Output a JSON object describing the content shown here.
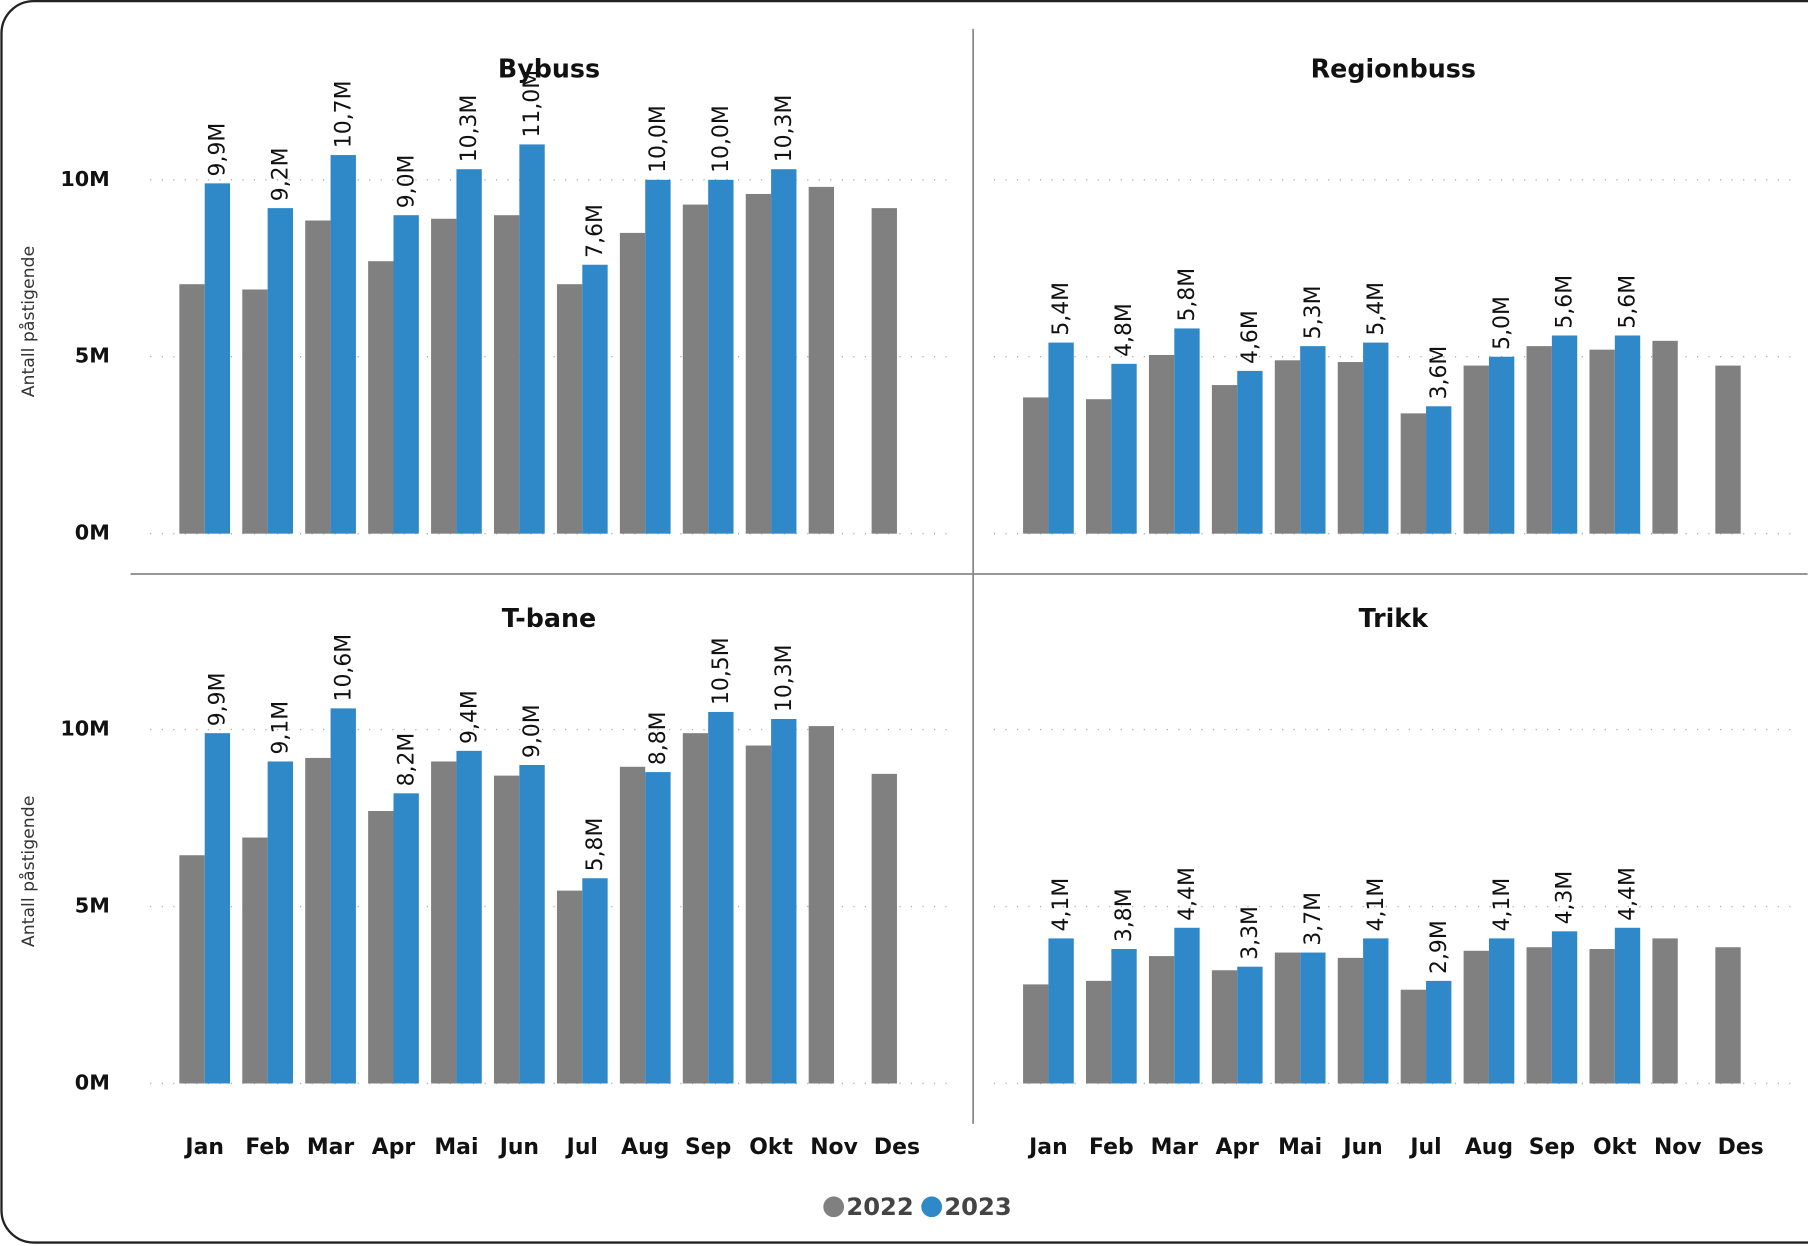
{
  "chart_data": [
    {
      "type": "bar",
      "title": "Bybuss",
      "y_label": "Antall påstigende",
      "ylim": [
        0,
        12
      ],
      "yticks": [
        {
          "value": 0,
          "label": "0M"
        },
        {
          "value": 5,
          "label": "5M"
        },
        {
          "value": 10,
          "label": "10M"
        }
      ],
      "grid": true,
      "series": [
        {
          "name": "2022",
          "color": "#808080",
          "values": [
            7.05,
            6.9,
            8.85,
            7.7,
            8.9,
            9.0,
            7.05,
            8.5,
            9.3,
            9.6,
            9.8,
            9.2
          ]
        },
        {
          "name": "2023",
          "color": "#2f89c8",
          "values": [
            9.9,
            9.2,
            10.7,
            9.0,
            10.3,
            11.0,
            7.6,
            10.0,
            10.0,
            10.3,
            null,
            null
          ],
          "value_labels": [
            "9,9M",
            "9,2M",
            "10,7M",
            "9,0M",
            "10,3M",
            "11,0M",
            "7,6M",
            "10,0M",
            "10,0M",
            "10,3M",
            null,
            null
          ]
        }
      ]
    },
    {
      "type": "bar",
      "title": "Regionbuss",
      "ylim": [
        0,
        12
      ],
      "yticks": [
        0,
        5,
        10
      ],
      "grid": true,
      "series": [
        {
          "color": "#808080",
          "values": [
            3.85,
            3.8,
            5.05,
            4.2,
            4.9,
            4.85,
            3.4,
            4.75,
            5.3,
            5.2,
            5.45,
            4.75
          ]
        },
        {
          "color": "#2f89c8",
          "values": [
            5.4,
            4.8,
            5.8,
            4.6,
            5.3,
            5.4,
            3.6,
            5.0,
            5.6,
            5.6,
            null,
            null
          ],
          "value_labels": [
            "5,4M",
            "4,8M",
            "5,8M",
            "4,6M",
            "5,3M",
            "5,4M",
            "3,6M",
            "5,0M",
            "5,6M",
            "5,6M",
            null,
            null
          ]
        }
      ]
    },
    {
      "type": "bar",
      "title": "T-bane",
      "y_label": "Antall påstigende",
      "categories": [
        "Jan",
        "Feb",
        "Mar",
        "Apr",
        "Mai",
        "Jun",
        "Jul",
        "Aug",
        "Sep",
        "Okt",
        "Nov",
        "Des"
      ],
      "ylim": [
        0,
        12
      ],
      "yticks": [
        {
          "value": 0,
          "label": "0M"
        },
        {
          "value": 5,
          "label": "5M"
        },
        {
          "value": 10,
          "label": "10M"
        }
      ],
      "grid": true,
      "series": [
        {
          "color": "#808080",
          "values": [
            6.45,
            6.95,
            9.2,
            7.7,
            9.1,
            8.7,
            5.45,
            8.95,
            9.9,
            9.55,
            10.1,
            8.75
          ]
        },
        {
          "color": "#2f89c8",
          "values": [
            9.9,
            9.1,
            10.6,
            8.2,
            9.4,
            9.0,
            5.8,
            8.8,
            10.5,
            10.3,
            null,
            null
          ],
          "value_labels": [
            "9,9M",
            "9,1M",
            "10,6M",
            "8,2M",
            "9,4M",
            "9,0M",
            "5,8M",
            "8,8M",
            "10,5M",
            "10,3M",
            null,
            null
          ]
        }
      ]
    },
    {
      "type": "bar",
      "title": "Trikk",
      "categories": [
        "Jan",
        "Feb",
        "Mar",
        "Apr",
        "Mai",
        "Jun",
        "Jul",
        "Aug",
        "Sep",
        "Okt",
        "Nov",
        "Des"
      ],
      "ylim": [
        0,
        12
      ],
      "yticks": [
        0,
        5,
        10
      ],
      "grid": true,
      "series": [
        {
          "color": "#808080",
          "values": [
            2.8,
            2.9,
            3.6,
            3.2,
            3.7,
            3.55,
            2.65,
            3.75,
            3.85,
            3.8,
            4.1,
            3.85
          ]
        },
        {
          "color": "#2f89c8",
          "values": [
            4.1,
            3.8,
            4.4,
            3.3,
            3.7,
            4.1,
            2.9,
            4.1,
            4.3,
            4.4,
            null,
            null
          ],
          "value_labels": [
            "4,1M",
            "3,8M",
            "4,4M",
            "3,3M",
            "3,7M",
            "4,1M",
            "2,9M",
            "4,1M",
            "4,3M",
            "4,4M",
            null,
            null
          ]
        }
      ]
    }
  ]
}
